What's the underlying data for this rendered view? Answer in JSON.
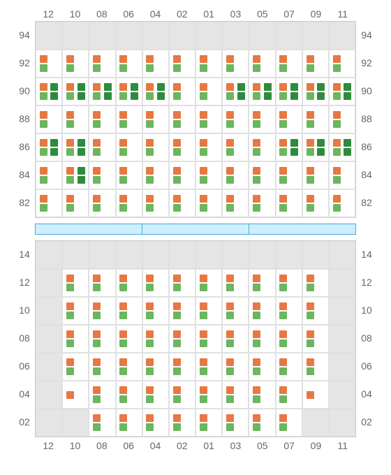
{
  "colors": {
    "orange": "#e77843",
    "green": "#6bb65f",
    "darkgreen": "#2e8b3d",
    "grid_bg": "#e5e5e5",
    "cell_bg": "#ffffff",
    "border": "#cccccc",
    "bar_fill": "#cdeffe",
    "bar_border": "#4aa8d8",
    "label": "#666666"
  },
  "columns": [
    "12",
    "10",
    "08",
    "06",
    "04",
    "02",
    "01",
    "03",
    "05",
    "07",
    "09",
    "11"
  ],
  "top_block": {
    "rows": [
      "94",
      "92",
      "90",
      "88",
      "86",
      "84",
      "82"
    ],
    "cells": [
      [
        {
          "bg": "e"
        },
        {
          "bg": "e"
        },
        {
          "bg": "e"
        },
        {
          "bg": "e"
        },
        {
          "bg": "e"
        },
        {
          "bg": "e"
        },
        {
          "bg": "e"
        },
        {
          "bg": "e"
        },
        {
          "bg": "e"
        },
        {
          "bg": "e"
        },
        {
          "bg": "e"
        },
        {
          "bg": "e"
        }
      ],
      [
        {
          "s": [
            [
              "o",
              "g"
            ]
          ]
        },
        {
          "s": [
            [
              "o",
              "g"
            ]
          ]
        },
        {
          "s": [
            [
              "o",
              "g"
            ]
          ]
        },
        {
          "s": [
            [
              "o",
              "g"
            ]
          ]
        },
        {
          "s": [
            [
              "o",
              "g"
            ]
          ]
        },
        {
          "s": [
            [
              "o",
              "g"
            ]
          ]
        },
        {
          "s": [
            [
              "o",
              "g"
            ]
          ]
        },
        {
          "s": [
            [
              "o",
              "g"
            ]
          ]
        },
        {
          "s": [
            [
              "o",
              "g"
            ]
          ]
        },
        {
          "s": [
            [
              "o",
              "g"
            ]
          ]
        },
        {
          "s": [
            [
              "o",
              "g"
            ]
          ]
        },
        {
          "s": [
            [
              "o",
              "g"
            ]
          ]
        }
      ],
      [
        {
          "s": [
            [
              "o",
              "g"
            ],
            [
              "d",
              "d"
            ]
          ]
        },
        {
          "s": [
            [
              "o",
              "g"
            ],
            [
              "d",
              "d"
            ]
          ]
        },
        {
          "s": [
            [
              "o",
              "g"
            ],
            [
              "d",
              "d"
            ]
          ]
        },
        {
          "s": [
            [
              "o",
              "g"
            ],
            [
              "d",
              "d"
            ]
          ]
        },
        {
          "s": [
            [
              "o",
              "g"
            ],
            [
              "d",
              "d"
            ]
          ]
        },
        {
          "s": [
            [
              "o",
              "g"
            ]
          ]
        },
        {
          "s": [
            [
              "o",
              "g"
            ]
          ]
        },
        {
          "s": [
            [
              "o",
              "g"
            ],
            [
              "d",
              "d"
            ]
          ]
        },
        {
          "s": [
            [
              "o",
              "g"
            ],
            [
              "d",
              "d"
            ]
          ]
        },
        {
          "s": [
            [
              "o",
              "g"
            ],
            [
              "d",
              "d"
            ]
          ]
        },
        {
          "s": [
            [
              "o",
              "g"
            ],
            [
              "d",
              "d"
            ]
          ]
        },
        {
          "s": [
            [
              "o",
              "g"
            ],
            [
              "d",
              "d"
            ]
          ]
        }
      ],
      [
        {
          "s": [
            [
              "o",
              "g"
            ]
          ]
        },
        {
          "s": [
            [
              "o",
              "g"
            ]
          ]
        },
        {
          "s": [
            [
              "o",
              "g"
            ]
          ]
        },
        {
          "s": [
            [
              "o",
              "g"
            ]
          ]
        },
        {
          "s": [
            [
              "o",
              "g"
            ]
          ]
        },
        {
          "s": [
            [
              "o",
              "g"
            ]
          ]
        },
        {
          "s": [
            [
              "o",
              "g"
            ]
          ]
        },
        {
          "s": [
            [
              "o",
              "g"
            ]
          ]
        },
        {
          "s": [
            [
              "o",
              "g"
            ]
          ]
        },
        {
          "s": [
            [
              "o",
              "g"
            ]
          ]
        },
        {
          "s": [
            [
              "o",
              "g"
            ]
          ]
        },
        {
          "s": [
            [
              "o",
              "g"
            ]
          ]
        }
      ],
      [
        {
          "s": [
            [
              "o",
              "g"
            ],
            [
              "d",
              "d"
            ]
          ]
        },
        {
          "s": [
            [
              "o",
              "g"
            ],
            [
              "d",
              "d"
            ]
          ]
        },
        {
          "s": [
            [
              "o",
              "g"
            ]
          ]
        },
        {
          "s": [
            [
              "o",
              "g"
            ]
          ]
        },
        {
          "s": [
            [
              "o",
              "g"
            ]
          ]
        },
        {
          "s": [
            [
              "o",
              "g"
            ]
          ]
        },
        {
          "s": [
            [
              "o",
              "g"
            ]
          ]
        },
        {
          "s": [
            [
              "o",
              "g"
            ]
          ]
        },
        {
          "s": [
            [
              "o",
              "g"
            ]
          ]
        },
        {
          "s": [
            [
              "o",
              "g"
            ],
            [
              "d",
              "d"
            ]
          ]
        },
        {
          "s": [
            [
              "o",
              "g"
            ],
            [
              "d",
              "d"
            ]
          ]
        },
        {
          "s": [
            [
              "o",
              "g"
            ],
            [
              "d",
              "d"
            ]
          ]
        }
      ],
      [
        {
          "s": [
            [
              "o",
              "g"
            ]
          ]
        },
        {
          "s": [
            [
              "o",
              "g"
            ],
            [
              "d",
              "d"
            ]
          ]
        },
        {
          "s": [
            [
              "o",
              "g"
            ]
          ]
        },
        {
          "s": [
            [
              "o",
              "g"
            ]
          ]
        },
        {
          "s": [
            [
              "o",
              "g"
            ]
          ]
        },
        {
          "s": [
            [
              "o",
              "g"
            ]
          ]
        },
        {
          "s": [
            [
              "o",
              "g"
            ]
          ]
        },
        {
          "s": [
            [
              "o",
              "g"
            ]
          ]
        },
        {
          "s": [
            [
              "o",
              "g"
            ]
          ]
        },
        {
          "s": [
            [
              "o",
              "g"
            ]
          ]
        },
        {
          "s": [
            [
              "o",
              "g"
            ]
          ]
        },
        {
          "s": [
            [
              "o",
              "g"
            ]
          ]
        }
      ],
      [
        {
          "s": [
            [
              "o",
              "g"
            ]
          ]
        },
        {
          "s": [
            [
              "o",
              "g"
            ]
          ]
        },
        {
          "s": [
            [
              "o",
              "g"
            ]
          ]
        },
        {
          "s": [
            [
              "o",
              "g"
            ]
          ]
        },
        {
          "s": [
            [
              "o",
              "g"
            ]
          ]
        },
        {
          "s": [
            [
              "o",
              "g"
            ]
          ]
        },
        {
          "s": [
            [
              "o",
              "g"
            ]
          ]
        },
        {
          "s": [
            [
              "o",
              "g"
            ]
          ]
        },
        {
          "s": [
            [
              "o",
              "g"
            ]
          ]
        },
        {
          "s": [
            [
              "o",
              "g"
            ]
          ]
        },
        {
          "s": [
            [
              "o",
              "g"
            ]
          ]
        },
        {
          "s": [
            [
              "o",
              "g"
            ]
          ]
        }
      ]
    ]
  },
  "mid_segments": 3,
  "bottom_block": {
    "rows": [
      "14",
      "12",
      "10",
      "08",
      "06",
      "04",
      "02"
    ],
    "cells": [
      [
        {
          "bg": "e"
        },
        {
          "bg": "e"
        },
        {
          "bg": "e"
        },
        {
          "bg": "e"
        },
        {
          "bg": "e"
        },
        {
          "bg": "e"
        },
        {
          "bg": "e"
        },
        {
          "bg": "e"
        },
        {
          "bg": "e"
        },
        {
          "bg": "e"
        },
        {
          "bg": "e"
        },
        {
          "bg": "e"
        }
      ],
      [
        {
          "bg": "e"
        },
        {
          "s": [
            [
              "o",
              "g"
            ]
          ]
        },
        {
          "s": [
            [
              "o",
              "g"
            ]
          ]
        },
        {
          "s": [
            [
              "o",
              "g"
            ]
          ]
        },
        {
          "s": [
            [
              "o",
              "g"
            ]
          ]
        },
        {
          "s": [
            [
              "o",
              "g"
            ]
          ]
        },
        {
          "s": [
            [
              "o",
              "g"
            ]
          ]
        },
        {
          "s": [
            [
              "o",
              "g"
            ]
          ]
        },
        {
          "s": [
            [
              "o",
              "g"
            ]
          ]
        },
        {
          "s": [
            [
              "o",
              "g"
            ]
          ]
        },
        {
          "s": [
            [
              "o",
              "g"
            ]
          ]
        },
        {
          "bg": "e"
        }
      ],
      [
        {
          "bg": "e"
        },
        {
          "s": [
            [
              "o",
              "g"
            ]
          ]
        },
        {
          "s": [
            [
              "o",
              "g"
            ]
          ]
        },
        {
          "s": [
            [
              "o",
              "g"
            ]
          ]
        },
        {
          "s": [
            [
              "o",
              "g"
            ]
          ]
        },
        {
          "s": [
            [
              "o",
              "g"
            ]
          ]
        },
        {
          "s": [
            [
              "o",
              "g"
            ]
          ]
        },
        {
          "s": [
            [
              "o",
              "g"
            ]
          ]
        },
        {
          "s": [
            [
              "o",
              "g"
            ]
          ]
        },
        {
          "s": [
            [
              "o",
              "g"
            ]
          ]
        },
        {
          "s": [
            [
              "o",
              "g"
            ]
          ]
        },
        {
          "bg": "e"
        }
      ],
      [
        {
          "bg": "e"
        },
        {
          "s": [
            [
              "o",
              "g"
            ]
          ]
        },
        {
          "s": [
            [
              "o",
              "g"
            ]
          ]
        },
        {
          "s": [
            [
              "o",
              "g"
            ]
          ]
        },
        {
          "s": [
            [
              "o",
              "g"
            ]
          ]
        },
        {
          "s": [
            [
              "o",
              "g"
            ]
          ]
        },
        {
          "s": [
            [
              "o",
              "g"
            ]
          ]
        },
        {
          "s": [
            [
              "o",
              "g"
            ]
          ]
        },
        {
          "s": [
            [
              "o",
              "g"
            ]
          ]
        },
        {
          "s": [
            [
              "o",
              "g"
            ]
          ]
        },
        {
          "s": [
            [
              "o",
              "g"
            ]
          ]
        },
        {
          "bg": "e"
        }
      ],
      [
        {
          "bg": "e"
        },
        {
          "s": [
            [
              "o",
              "g"
            ]
          ]
        },
        {
          "s": [
            [
              "o",
              "g"
            ]
          ]
        },
        {
          "s": [
            [
              "o",
              "g"
            ]
          ]
        },
        {
          "s": [
            [
              "o",
              "g"
            ]
          ]
        },
        {
          "s": [
            [
              "o",
              "g"
            ]
          ]
        },
        {
          "s": [
            [
              "o",
              "g"
            ]
          ]
        },
        {
          "s": [
            [
              "o",
              "g"
            ]
          ]
        },
        {
          "s": [
            [
              "o",
              "g"
            ]
          ]
        },
        {
          "s": [
            [
              "o",
              "g"
            ]
          ]
        },
        {
          "s": [
            [
              "o",
              "g"
            ]
          ]
        },
        {
          "bg": "e"
        }
      ],
      [
        {
          "bg": "e"
        },
        {
          "s": [
            [
              "o",
              ""
            ]
          ]
        },
        {
          "s": [
            [
              "o",
              "g"
            ]
          ]
        },
        {
          "s": [
            [
              "o",
              "g"
            ]
          ]
        },
        {
          "s": [
            [
              "o",
              "g"
            ]
          ]
        },
        {
          "s": [
            [
              "o",
              "g"
            ]
          ]
        },
        {
          "s": [
            [
              "o",
              "g"
            ]
          ]
        },
        {
          "s": [
            [
              "o",
              "g"
            ]
          ]
        },
        {
          "s": [
            [
              "o",
              "g"
            ]
          ]
        },
        {
          "s": [
            [
              "o",
              "g"
            ]
          ]
        },
        {
          "s": [
            [
              "o",
              ""
            ]
          ]
        },
        {
          "bg": "e"
        }
      ],
      [
        {
          "bg": "e"
        },
        {
          "bg": "e"
        },
        {
          "s": [
            [
              "o",
              "g"
            ]
          ]
        },
        {
          "s": [
            [
              "o",
              "g"
            ]
          ]
        },
        {
          "s": [
            [
              "o",
              "g"
            ]
          ]
        },
        {
          "s": [
            [
              "o",
              "g"
            ]
          ]
        },
        {
          "s": [
            [
              "o",
              "g"
            ]
          ]
        },
        {
          "s": [
            [
              "o",
              "g"
            ]
          ]
        },
        {
          "s": [
            [
              "o",
              "g"
            ]
          ]
        },
        {
          "s": [
            [
              "o",
              "g"
            ]
          ]
        },
        {
          "bg": "e"
        },
        {
          "bg": "e"
        }
      ]
    ]
  }
}
